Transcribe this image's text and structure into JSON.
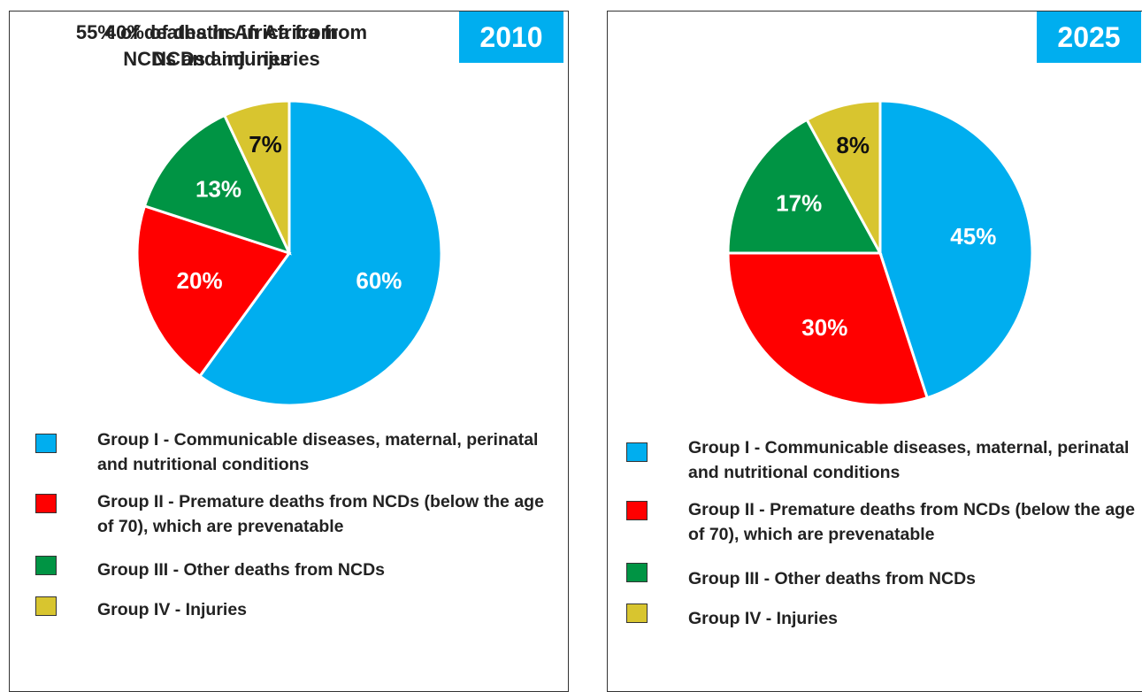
{
  "chart_data": [
    {
      "type": "pie",
      "title": "40% of deaths in Africa from NCDs and injuries",
      "year": "2010",
      "categories": [
        "Group I - Communicable diseases, maternal, perinatal and nutritional conditions",
        "Group II - Premature deaths from NCDs (below the age of 70), which are prevenatable",
        "Group III - Other deaths from NCDs",
        "Group IV - Injuries"
      ],
      "values": [
        60,
        20,
        13,
        7
      ],
      "value_labels": [
        "60%",
        "20%",
        "13%",
        "7%"
      ],
      "colors": [
        "#00aeef",
        "#ff0000",
        "#009444",
        "#d8c52f"
      ]
    },
    {
      "type": "pie",
      "title": "55% of deaths in Africa from NCDs and injuries",
      "year": "2025",
      "categories": [
        "Group I - Communicable diseases, maternal, perinatal and nutritional conditions",
        "Group II - Premature deaths from NCDs (below the age of 70), which are prevenatable",
        "Group III - Other deaths from NCDs",
        "Group IV - Injuries"
      ],
      "values": [
        45,
        30,
        17,
        8
      ],
      "value_labels": [
        "45%",
        "30%",
        "17%",
        "8%"
      ],
      "colors": [
        "#00aeef",
        "#ff0000",
        "#009444",
        "#d8c52f"
      ]
    }
  ]
}
